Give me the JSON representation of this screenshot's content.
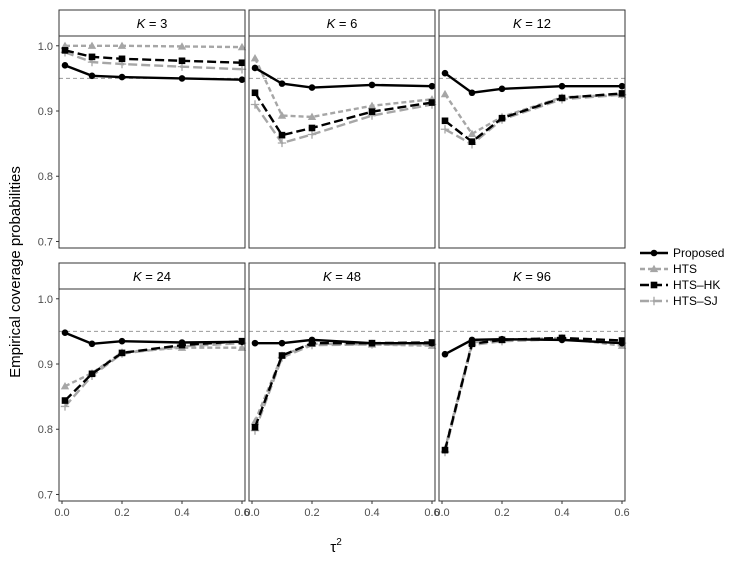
{
  "chart_data": {
    "type": "line",
    "ylabel": "Empirical coverage probabilities",
    "xlabel": "τ",
    "xlabel_superscript": "2",
    "xlim": [
      -0.01,
      0.61
    ],
    "ylim": [
      0.69,
      1.015
    ],
    "xticks": [
      "0.0",
      "0.2",
      "0.4",
      "0.6"
    ],
    "xtick_values": [
      0.0,
      0.2,
      0.4,
      0.6
    ],
    "yticks": [
      "0.7",
      "0.8",
      "0.9",
      "1.0"
    ],
    "ytick_values": [
      0.7,
      0.8,
      0.9,
      1.0
    ],
    "reference_line": 0.95,
    "x": [
      0.01,
      0.1,
      0.2,
      0.4,
      0.6
    ],
    "legend_position": "right",
    "series_styles": [
      {
        "name": "Proposed",
        "color": "#000000",
        "dash": "solid",
        "marker": "circle"
      },
      {
        "name": "HTS",
        "color": "#a6a6a6",
        "dash": "dashed",
        "marker": "triangle"
      },
      {
        "name": "HTS–HK",
        "color": "#000000",
        "dash": "longdash",
        "marker": "square"
      },
      {
        "name": "HTS–SJ",
        "color": "#a6a6a6",
        "dash": "longdash",
        "marker": "plus"
      }
    ],
    "panels": [
      {
        "label": "K = 3",
        "k": "3",
        "series": [
          {
            "name": "Proposed",
            "values": [
              0.97,
              0.954,
              0.952,
              0.95,
              0.948
            ]
          },
          {
            "name": "HTS",
            "values": [
              1.0,
              1.0,
              1.0,
              0.999,
              0.998
            ]
          },
          {
            "name": "HTS–HK",
            "values": [
              0.993,
              0.983,
              0.98,
              0.977,
              0.974
            ]
          },
          {
            "name": "HTS–SJ",
            "values": [
              0.99,
              0.975,
              0.972,
              0.968,
              0.964
            ]
          }
        ]
      },
      {
        "label": "K = 6",
        "k": "6",
        "series": [
          {
            "name": "Proposed",
            "values": [
              0.966,
              0.942,
              0.936,
              0.94,
              0.938
            ]
          },
          {
            "name": "HTS",
            "values": [
              0.981,
              0.893,
              0.891,
              0.908,
              0.918
            ]
          },
          {
            "name": "HTS–HK",
            "values": [
              0.928,
              0.863,
              0.874,
              0.899,
              0.913
            ]
          },
          {
            "name": "HTS–SJ",
            "values": [
              0.91,
              0.851,
              0.864,
              0.893,
              0.91
            ]
          }
        ]
      },
      {
        "label": "K = 12",
        "k": "12",
        "series": [
          {
            "name": "Proposed",
            "values": [
              0.958,
              0.928,
              0.934,
              0.938,
              0.938
            ]
          },
          {
            "name": "HTS",
            "values": [
              0.926,
              0.865,
              0.891,
              0.921,
              0.925
            ]
          },
          {
            "name": "HTS–HK",
            "values": [
              0.885,
              0.853,
              0.889,
              0.92,
              0.927
            ]
          },
          {
            "name": "HTS–SJ",
            "values": [
              0.872,
              0.849,
              0.887,
              0.918,
              0.925
            ]
          }
        ]
      },
      {
        "label": "K = 24",
        "k": "24",
        "series": [
          {
            "name": "Proposed",
            "values": [
              0.948,
              0.931,
              0.935,
              0.933,
              0.934
            ]
          },
          {
            "name": "HTS",
            "values": [
              0.866,
              0.886,
              0.918,
              0.925,
              0.925
            ]
          },
          {
            "name": "HTS–HK",
            "values": [
              0.844,
              0.885,
              0.917,
              0.929,
              0.935
            ]
          },
          {
            "name": "HTS–SJ",
            "values": [
              0.835,
              0.882,
              0.916,
              0.927,
              0.932
            ]
          }
        ]
      },
      {
        "label": "K = 48",
        "k": "48",
        "series": [
          {
            "name": "Proposed",
            "values": [
              0.932,
              0.932,
              0.937,
              0.932,
              0.932
            ]
          },
          {
            "name": "HTS",
            "values": [
              0.812,
              0.913,
              0.931,
              0.93,
              0.928
            ]
          },
          {
            "name": "HTS–HK",
            "values": [
              0.803,
              0.913,
              0.932,
              0.932,
              0.933
            ]
          },
          {
            "name": "HTS–SJ",
            "values": [
              0.798,
              0.91,
              0.929,
              0.93,
              0.93
            ]
          }
        ]
      },
      {
        "label": "K = 96",
        "k": "96",
        "series": [
          {
            "name": "Proposed",
            "values": [
              0.915,
              0.937,
              0.938,
              0.937,
              0.932
            ]
          },
          {
            "name": "HTS",
            "values": [
              0.77,
              0.933,
              0.937,
              0.94,
              0.928
            ]
          },
          {
            "name": "HTS–HK",
            "values": [
              0.768,
              0.931,
              0.937,
              0.94,
              0.936
            ]
          },
          {
            "name": "HTS–SJ",
            "values": [
              0.765,
              0.929,
              0.935,
              0.938,
              0.932
            ]
          }
        ]
      }
    ]
  }
}
